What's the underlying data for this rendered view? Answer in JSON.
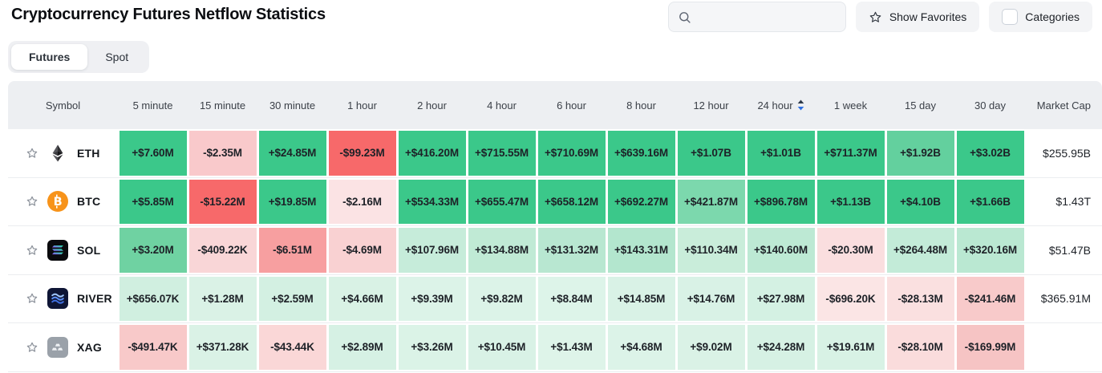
{
  "page": {
    "title": "Cryptocurrency Futures Netflow Statistics"
  },
  "controls": {
    "search_placeholder": "",
    "search_value": "",
    "show_favorites_label": "Show Favorites",
    "categories_label": "Categories",
    "categories_checked": false
  },
  "tabs": [
    {
      "label": "Futures",
      "active": true
    },
    {
      "label": "Spot",
      "active": false
    }
  ],
  "colors": {
    "strong_green": "#3bc88a",
    "strong_red": "#f7696a",
    "header_bg": "#edeff2",
    "sort_active_blue": "#2e6fe0",
    "bitcoin_orange": "#f7931a"
  },
  "table": {
    "columns": [
      "Symbol",
      "5 minute",
      "15 minute",
      "30 minute",
      "1 hour",
      "2 hour",
      "4 hour",
      "6 hour",
      "8 hour",
      "12 hour",
      "24 hour",
      "1 week",
      "15 day",
      "30 day",
      "Market Cap"
    ],
    "sort": {
      "column": "24 hour",
      "direction": "desc"
    },
    "rows": [
      {
        "symbol": "ETH",
        "icon": "eth-logo",
        "market_cap": "$255.95B",
        "cells": [
          {
            "text": "+$7.60M",
            "bg": "#3bc88a"
          },
          {
            "text": "-$2.35M",
            "bg": "#f9c9cb"
          },
          {
            "text": "+$24.85M",
            "bg": "#3bc88a"
          },
          {
            "text": "-$99.23M",
            "bg": "#f7696a"
          },
          {
            "text": "+$416.20M",
            "bg": "#3bc88a"
          },
          {
            "text": "+$715.55M",
            "bg": "#3bc88a"
          },
          {
            "text": "+$710.69M",
            "bg": "#3bc88a"
          },
          {
            "text": "+$639.16M",
            "bg": "#3bc88a"
          },
          {
            "text": "+$1.07B",
            "bg": "#3bc88a"
          },
          {
            "text": "+$1.01B",
            "bg": "#3bc88a"
          },
          {
            "text": "+$711.37M",
            "bg": "#3bc88a"
          },
          {
            "text": "+$1.92B",
            "bg": "#63d09e"
          },
          {
            "text": "+$3.02B",
            "bg": "#3bc88a"
          }
        ]
      },
      {
        "symbol": "BTC",
        "icon": "btc-logo",
        "market_cap": "$1.43T",
        "cells": [
          {
            "text": "+$5.85M",
            "bg": "#3bc88a"
          },
          {
            "text": "-$15.22M",
            "bg": "#f7696a"
          },
          {
            "text": "+$19.85M",
            "bg": "#3bc88a"
          },
          {
            "text": "-$2.16M",
            "bg": "#fbe3e4"
          },
          {
            "text": "+$534.33M",
            "bg": "#3bc88a"
          },
          {
            "text": "+$655.47M",
            "bg": "#3bc88a"
          },
          {
            "text": "+$658.12M",
            "bg": "#3bc88a"
          },
          {
            "text": "+$692.27M",
            "bg": "#3bc88a"
          },
          {
            "text": "+$421.87M",
            "bg": "#7cd8ad"
          },
          {
            "text": "+$896.78M",
            "bg": "#3bc88a"
          },
          {
            "text": "+$1.13B",
            "bg": "#3bc88a"
          },
          {
            "text": "+$4.10B",
            "bg": "#3bc88a"
          },
          {
            "text": "+$1.66B",
            "bg": "#3bc88a"
          }
        ]
      },
      {
        "symbol": "SOL",
        "icon": "sol-logo",
        "market_cap": "$51.47B",
        "cells": [
          {
            "text": "+$3.20M",
            "bg": "#6fd2a2"
          },
          {
            "text": "-$409.22K",
            "bg": "#f9d6d7"
          },
          {
            "text": "-$6.51M",
            "bg": "#f79fa0"
          },
          {
            "text": "-$4.69M",
            "bg": "#f9d1d2"
          },
          {
            "text": "+$107.96M",
            "bg": "#c6ecda"
          },
          {
            "text": "+$134.88M",
            "bg": "#c0ead5"
          },
          {
            "text": "+$131.32M",
            "bg": "#b8e7d1"
          },
          {
            "text": "+$143.31M",
            "bg": "#b3e6ce"
          },
          {
            "text": "+$110.34M",
            "bg": "#c9edda"
          },
          {
            "text": "+$140.60M",
            "bg": "#bde9d4"
          },
          {
            "text": "-$20.30M",
            "bg": "#fadedf"
          },
          {
            "text": "+$264.48M",
            "bg": "#c3ebd8"
          },
          {
            "text": "+$320.16M",
            "bg": "#bae8d2"
          }
        ]
      },
      {
        "symbol": "RIVER",
        "icon": "river-logo",
        "market_cap": "$365.91M",
        "cells": [
          {
            "text": "+$656.07K",
            "bg": "#d0efe0"
          },
          {
            "text": "+$1.28M",
            "bg": "#daf2e6"
          },
          {
            "text": "+$2.59M",
            "bg": "#d3f0e2"
          },
          {
            "text": "+$4.66M",
            "bg": "#d9f2e5"
          },
          {
            "text": "+$9.39M",
            "bg": "#dcf3e8"
          },
          {
            "text": "+$9.82M",
            "bg": "#dcf3e8"
          },
          {
            "text": "+$8.84M",
            "bg": "#ddf4e9"
          },
          {
            "text": "+$14.85M",
            "bg": "#d9f2e6"
          },
          {
            "text": "+$14.76M",
            "bg": "#d9f2e6"
          },
          {
            "text": "+$27.98M",
            "bg": "#d4f1e3"
          },
          {
            "text": "-$696.20K",
            "bg": "#fbe5e5"
          },
          {
            "text": "-$28.13M",
            "bg": "#fae0e0"
          },
          {
            "text": "-$241.46M",
            "bg": "#f8caca"
          }
        ]
      },
      {
        "symbol": "XAG",
        "icon": "xag-logo",
        "market_cap": "",
        "cells": [
          {
            "text": "-$491.47K",
            "bg": "#f8c9c9"
          },
          {
            "text": "+$371.28K",
            "bg": "#daf2e6"
          },
          {
            "text": "-$43.44K",
            "bg": "#fad7d7"
          },
          {
            "text": "+$2.89M",
            "bg": "#d6f1e4"
          },
          {
            "text": "+$3.26M",
            "bg": "#dbf3e7"
          },
          {
            "text": "+$10.45M",
            "bg": "#d9f2e6"
          },
          {
            "text": "+$1.43M",
            "bg": "#def4e9"
          },
          {
            "text": "+$4.68M",
            "bg": "#dcf3e8"
          },
          {
            "text": "+$9.02M",
            "bg": "#daf2e6"
          },
          {
            "text": "+$24.28M",
            "bg": "#d6f1e4"
          },
          {
            "text": "+$19.61M",
            "bg": "#d8f2e5"
          },
          {
            "text": "-$28.10M",
            "bg": "#fadcdc"
          },
          {
            "text": "-$169.99M",
            "bg": "#f6c4c4"
          }
        ]
      }
    ],
    "partial_row_colors": [
      "#f5b6b6",
      "#cfeede",
      "#f8cdcd",
      "#f5b0b0",
      "#cfeede",
      "#d8f2e5",
      "#d9f2e6",
      "#d8f2e5",
      "#d6f1e4",
      "#cfeede",
      "#f3a7a7",
      "#f8caca",
      "#f8caca"
    ]
  }
}
